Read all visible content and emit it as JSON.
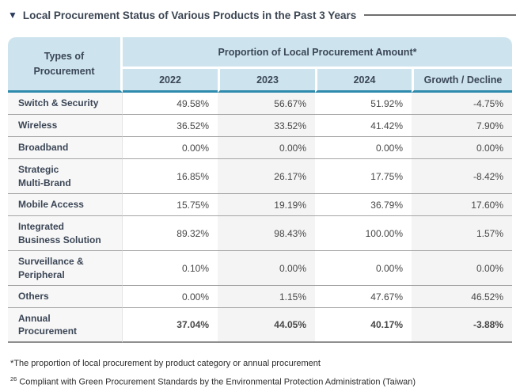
{
  "title": {
    "marker": "▼",
    "text": "Local Procurement Status of Various Products in the Past 3 Years"
  },
  "table": {
    "header": {
      "row_label_column": "Types of\nProcurement",
      "group_label": "Proportion of Local Procurement Amount*",
      "columns": [
        "2022",
        "2023",
        "2024",
        "Growth / Decline"
      ]
    },
    "rows": [
      {
        "label": "Switch & Security",
        "values": [
          "49.58%",
          "56.67%",
          "51.92%",
          "-4.75%"
        ],
        "bold_values": false
      },
      {
        "label": "Wireless",
        "values": [
          "36.52%",
          "33.52%",
          "41.42%",
          "7.90%"
        ],
        "bold_values": false
      },
      {
        "label": "Broadband",
        "values": [
          "0.00%",
          "0.00%",
          "0.00%",
          "0.00%"
        ],
        "bold_values": false
      },
      {
        "label": "Strategic\nMulti-Brand",
        "values": [
          "16.85%",
          "26.17%",
          "17.75%",
          "-8.42%"
        ],
        "bold_values": false
      },
      {
        "label": "Mobile Access",
        "values": [
          "15.75%",
          "19.19%",
          "36.79%",
          "17.60%"
        ],
        "bold_values": false
      },
      {
        "label": "Integrated\nBusiness Solution",
        "values": [
          "89.32%",
          "98.43%",
          "100.00%",
          "1.57%"
        ],
        "bold_values": false
      },
      {
        "label": "Surveillance &\nPeripheral",
        "values": [
          "0.10%",
          "0.00%",
          "0.00%",
          "0.00%"
        ],
        "bold_values": false
      },
      {
        "label": "Others",
        "values": [
          "0.00%",
          "1.15%",
          "47.67%",
          "46.52%"
        ],
        "bold_values": false
      },
      {
        "label": "Annual\nProcurement",
        "values": [
          "37.04%",
          "44.05%",
          "40.17%",
          "-3.88%"
        ],
        "bold_values": true
      }
    ]
  },
  "footnotes": [
    {
      "marker": "*",
      "text": "The proportion of local procurement by product category or annual procurement"
    },
    {
      "marker": "26",
      "text": "Compliant with Green Procurement Standards by the Environmental Protection Administration (Taiwan)"
    }
  ],
  "colors": {
    "header_background": "#cde4ee",
    "header_underline_teal": "#2e8bad",
    "row_border": "#a5a5a5",
    "label_column_background": "#f7f7f7",
    "striped_column_background": "#f4f4f5",
    "title_marker": "#2d3c5e",
    "text_dark": "#3b4656"
  }
}
